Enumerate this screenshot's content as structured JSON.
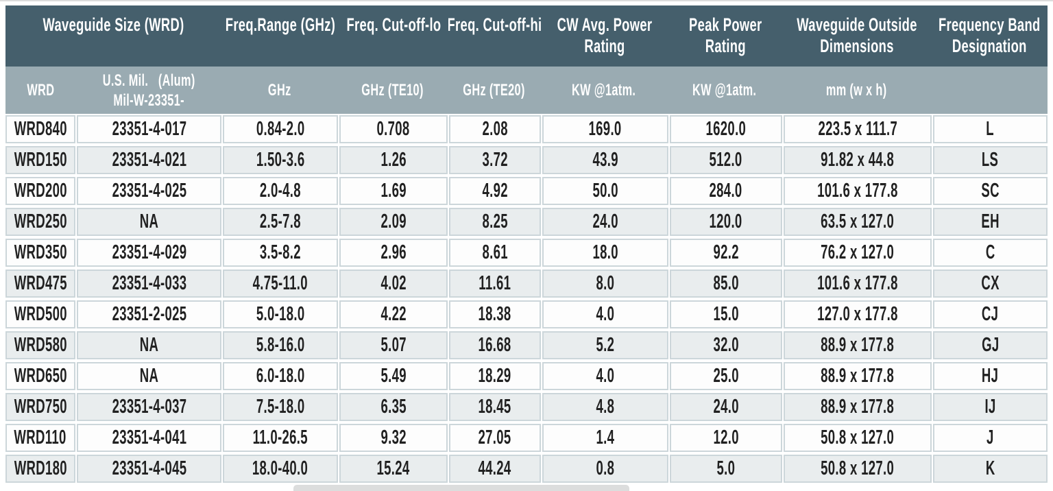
{
  "colors": {
    "page_bg": "#ffffff",
    "top_rule": "#dcdcdc",
    "header_dark_bg": "#455f6c",
    "header_light_bg": "#9aabb2",
    "header_text": "#ffffff",
    "row_bg": "#fdfdfd",
    "row_alt_bg": "#e9edee",
    "cell_border": "#ccd6da",
    "data_text": "#212121",
    "bottom_bar": "#dcdddd"
  },
  "table": {
    "group_headers": [
      {
        "label": "Waveguide Size (WRD)",
        "span": 2
      },
      {
        "label": "Freq.Range (GHz)",
        "span": 1
      },
      {
        "label": "Freq. Cut-off-lo",
        "span": 1
      },
      {
        "label": "Freq. Cut-off-hi",
        "span": 1
      },
      {
        "label": "CW Avg. Power\nRating",
        "span": 1
      },
      {
        "label": "Peak Power\nRating",
        "span": 1
      },
      {
        "label": "Waveguide Outside\nDimensions",
        "span": 1
      },
      {
        "label": "Frequency Band\nDesignation",
        "span": 1
      }
    ],
    "unit_headers": [
      "WRD",
      "U.S. Mil.   (Alum)\nMil-W-23351-",
      "GHz",
      "GHz (TE10)",
      "GHz (TE20)",
      "KW @1atm.",
      "KW @1atm.",
      "mm (w x h)",
      ""
    ],
    "columns": [
      "wrd",
      "mil-part-number",
      "freq-range",
      "freq-cutoff-lo",
      "freq-cutoff-hi",
      "cw-avg-power",
      "peak-power",
      "outside-dimensions",
      "band-designation"
    ],
    "rows": [
      [
        "WRD840",
        "23351-4-017",
        "0.84-2.0",
        "0.708",
        "2.08",
        "169.0",
        "1620.0",
        "223.5 x 111.7",
        "L"
      ],
      [
        "WRD150",
        "23351-4-021",
        "1.50-3.6",
        "1.26",
        "3.72",
        "43.9",
        "512.0",
        "91.82 x 44.8",
        "LS"
      ],
      [
        "WRD200",
        "23351-4-025",
        "2.0-4.8",
        "1.69",
        "4.92",
        "50.0",
        "284.0",
        "101.6 x 177.8",
        "SC"
      ],
      [
        "WRD250",
        "NA",
        "2.5-7.8",
        "2.09",
        "8.25",
        "24.0",
        "120.0",
        "63.5 x 127.0",
        "EH"
      ],
      [
        "WRD350",
        "23351-4-029",
        "3.5-8.2",
        "2.96",
        "8.61",
        "18.0",
        "92.2",
        "76.2 x 127.0",
        "C"
      ],
      [
        "WRD475",
        "23351-4-033",
        "4.75-11.0",
        "4.02",
        "11.61",
        "8.0",
        "85.0",
        "101.6 x 177.8",
        "CX"
      ],
      [
        "WRD500",
        "23351-2-025",
        "5.0-18.0",
        "4.22",
        "18.38",
        "4.0",
        "15.0",
        "127.0 x 177.8",
        "CJ"
      ],
      [
        "WRD580",
        "NA",
        "5.8-16.0",
        "5.07",
        "16.68",
        "5.2",
        "32.0",
        "88.9 x 177.8",
        "GJ"
      ],
      [
        "WRD650",
        "NA",
        "6.0-18.0",
        "5.49",
        "18.29",
        "4.0",
        "25.0",
        "88.9 x 177.8",
        "HJ"
      ],
      [
        "WRD750",
        "23351-4-037",
        "7.5-18.0",
        "6.35",
        "18.45",
        "4.8",
        "24.0",
        "88.9 x 177.8",
        "IJ"
      ],
      [
        "WRD110",
        "23351-4-041",
        "11.0-26.5",
        "9.32",
        "27.05",
        "1.4",
        "12.0",
        "50.8 x 127.0",
        "J"
      ],
      [
        "WRD180",
        "23351-4-045",
        "18.0-40.0",
        "15.24",
        "44.24",
        "0.8",
        "5.0",
        "50.8 x 127.0",
        "K"
      ]
    ]
  }
}
